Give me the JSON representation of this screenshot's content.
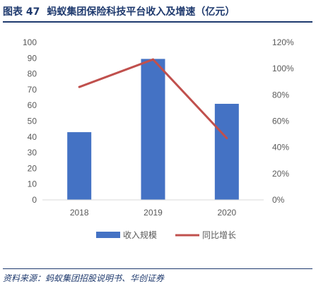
{
  "figure": {
    "label": "图表 47",
    "title": "蚂蚁集团保险科技平台收入及增速（亿元）"
  },
  "chart_data": {
    "type": "bar",
    "categories": [
      "2018",
      "2019",
      "2020"
    ],
    "series": [
      {
        "name": "收入规模",
        "kind": "bar",
        "axis": "left",
        "values": [
          43,
          89.5,
          61
        ],
        "color": "#4472c4"
      },
      {
        "name": "同比增长",
        "kind": "line",
        "axis": "right",
        "values": [
          86,
          107,
          47
        ],
        "color": "#c0504d"
      }
    ],
    "y_left": {
      "min": 0,
      "max": 100,
      "step": 10,
      "ticks": [
        "0",
        "10",
        "20",
        "30",
        "40",
        "50",
        "60",
        "70",
        "80",
        "90",
        "100"
      ]
    },
    "y_right": {
      "min": 0,
      "max": 120,
      "step": 20,
      "ticks": [
        "0%",
        "20%",
        "40%",
        "60%",
        "80%",
        "100%",
        "120%"
      ]
    },
    "grid": false,
    "legend_position": "bottom"
  },
  "source": "资料来源：蚂蚁集团招股说明书、华创证券"
}
